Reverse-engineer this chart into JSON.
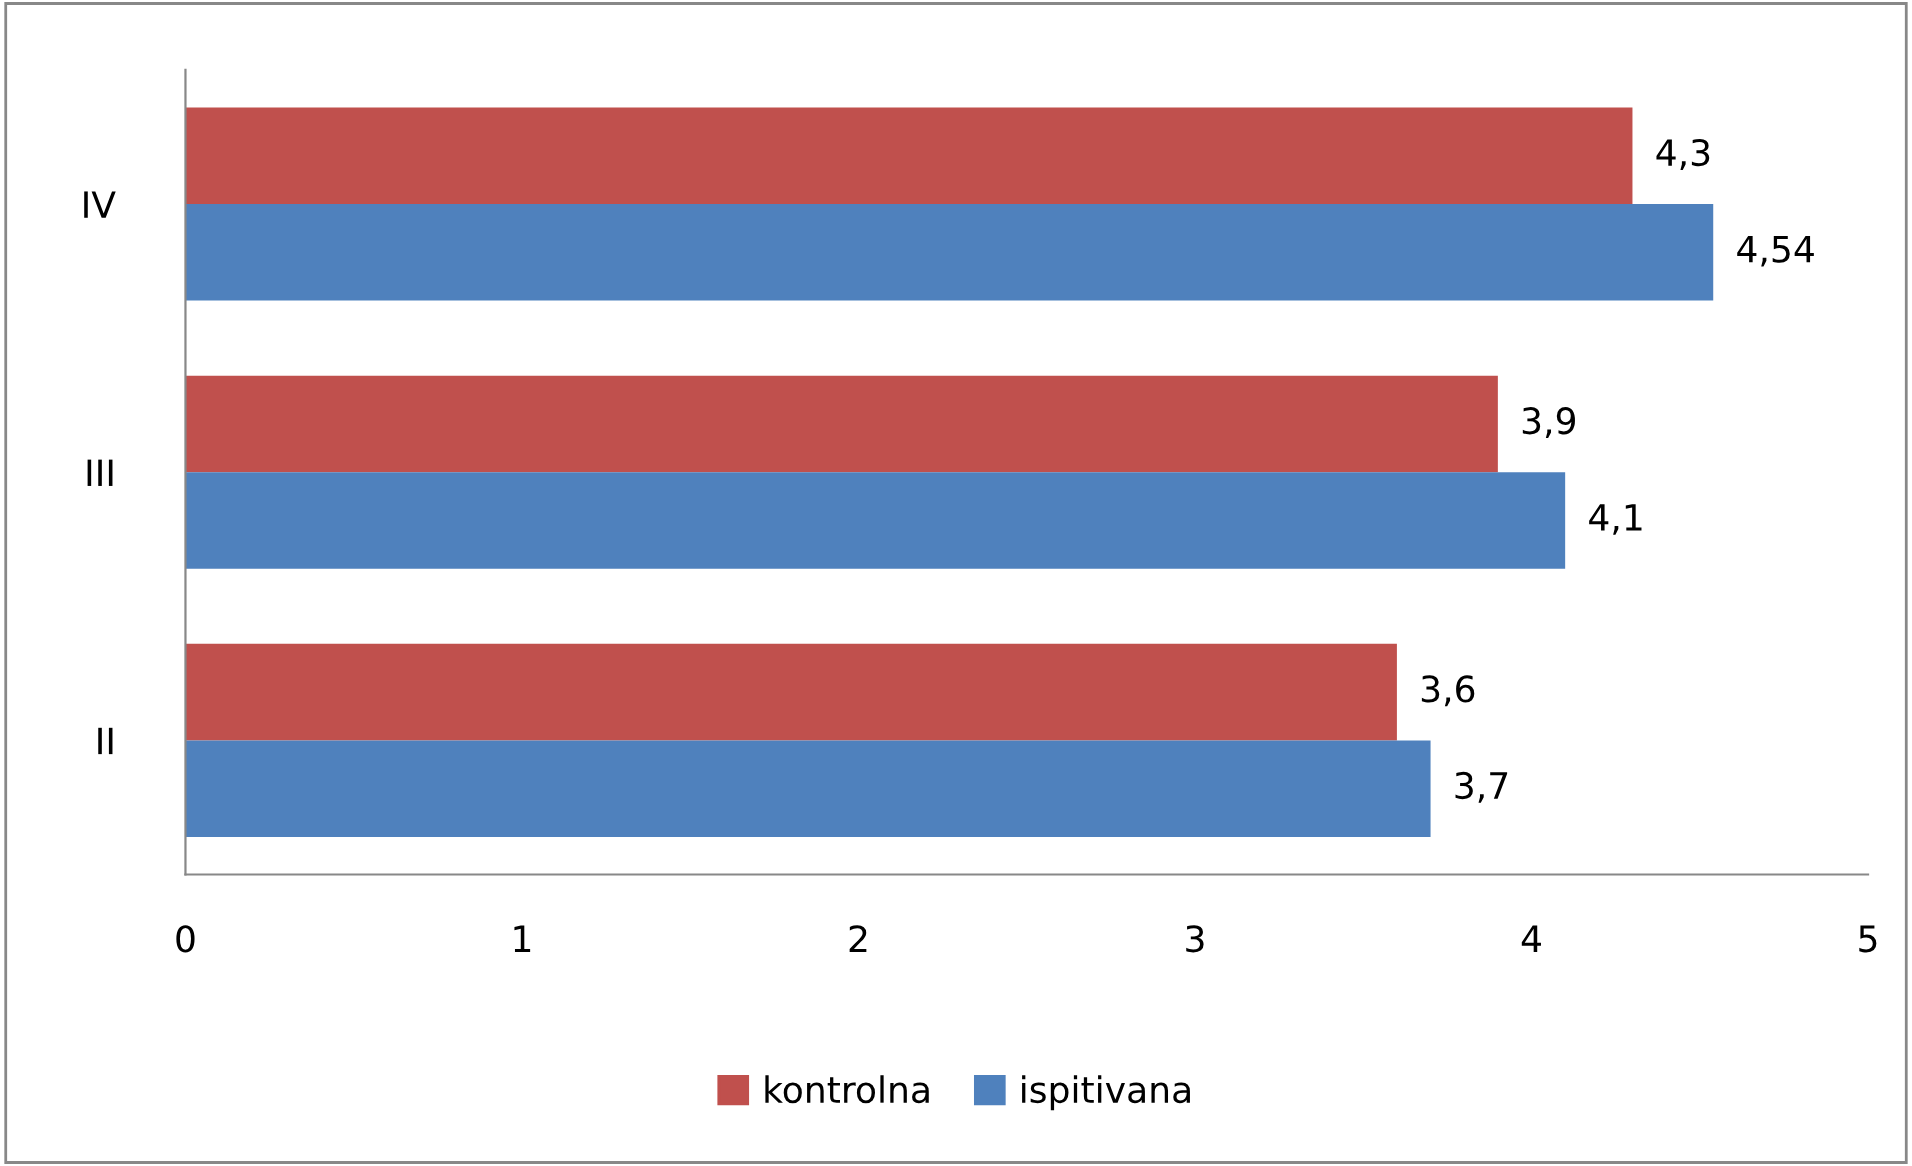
{
  "chart_data": {
    "type": "bar",
    "orientation": "horizontal",
    "categories": [
      "IV",
      "III",
      "II"
    ],
    "series": [
      {
        "name": "kontrolna",
        "color": "#c0504d",
        "values": [
          4.3,
          3.9,
          3.6
        ],
        "value_labels": [
          "4,3",
          "3,9",
          "3,6"
        ]
      },
      {
        "name": "ispitivana",
        "color": "#4f81bd",
        "values": [
          4.54,
          4.1,
          3.7
        ],
        "value_labels": [
          "4,54",
          "4,1",
          "3,7"
        ]
      }
    ],
    "xlim": [
      0,
      5
    ],
    "xticks": [
      0,
      1,
      2,
      3,
      4,
      5
    ],
    "grid": false,
    "legend": "bottom"
  }
}
